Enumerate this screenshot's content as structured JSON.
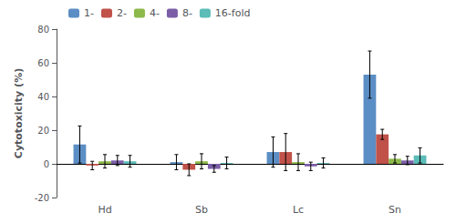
{
  "chart_data": {
    "type": "bar",
    "categories": [
      "Hd",
      "Sb",
      "Lc",
      "Sn"
    ],
    "series": [
      {
        "name": "1-",
        "color": "#5B8EC5",
        "values": [
          11.5,
          1.0,
          7.0,
          53.0
        ],
        "errors": [
          11.0,
          4.5,
          9.0,
          14.0
        ]
      },
      {
        "name": "2-",
        "color": "#C0524A",
        "values": [
          -1.0,
          -3.5,
          7.0,
          17.5
        ],
        "errors": [
          2.5,
          3.5,
          11.0,
          3.0
        ]
      },
      {
        "name": "4-",
        "color": "#8DB84A",
        "values": [
          1.5,
          1.5,
          1.0,
          3.0
        ],
        "errors": [
          4.0,
          4.5,
          5.0,
          2.5
        ]
      },
      {
        "name": "8-",
        "color": "#7B5EA7",
        "values": [
          2.0,
          -3.0,
          -1.5,
          2.0
        ],
        "errors": [
          3.0,
          2.0,
          2.5,
          2.5
        ]
      },
      {
        "name": "16-fold",
        "color": "#5BBCB8",
        "values": [
          1.5,
          0.5,
          0.5,
          5.0
        ],
        "errors": [
          3.5,
          3.5,
          3.0,
          4.5
        ]
      }
    ],
    "ylabel": "Cytotoxicity (%)",
    "ylim": [
      -20,
      80
    ],
    "yticks": [
      -20,
      0,
      20,
      40,
      60,
      80
    ],
    "grid": false,
    "legend": "upper left"
  }
}
